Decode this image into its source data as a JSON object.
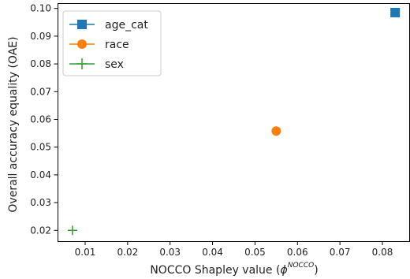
{
  "chart_data": {
    "type": "scatter",
    "title": "",
    "xlabel": "NOCCO Shapley value (",
    "xlabel_symbol": "ϕ",
    "xlabel_superscript": "NOCCO",
    "xlabel_close": ")",
    "ylabel": "Overall accuracy equality (OAE)",
    "xlim": [
      0.0035,
      0.0865
    ],
    "ylim": [
      0.0161,
      0.1019
    ],
    "x_ticks": [
      0.01,
      0.02,
      0.03,
      0.04,
      0.05,
      0.06,
      0.07,
      0.08
    ],
    "x_tick_labels": [
      "0.01",
      "0.02",
      "0.03",
      "0.04",
      "0.05",
      "0.06",
      "0.07",
      "0.08"
    ],
    "y_ticks": [
      0.02,
      0.03,
      0.04,
      0.05,
      0.06,
      0.07,
      0.08,
      0.09,
      0.1
    ],
    "y_tick_labels": [
      "0.02",
      "0.03",
      "0.04",
      "0.05",
      "0.06",
      "0.07",
      "0.08",
      "0.09",
      "0.10"
    ],
    "grid": false,
    "legend_position": "top-left",
    "series": [
      {
        "name": "age_cat",
        "marker": "square",
        "color": "#1f77b4",
        "x": [
          0.083
        ],
        "y": [
          0.0985
        ]
      },
      {
        "name": "race",
        "marker": "circle",
        "color": "#ff7f0e",
        "x": [
          0.055
        ],
        "y": [
          0.0558
        ]
      },
      {
        "name": "sex",
        "marker": "plus",
        "color": "#2ca02c",
        "x": [
          0.007
        ],
        "y": [
          0.02
        ]
      }
    ]
  }
}
